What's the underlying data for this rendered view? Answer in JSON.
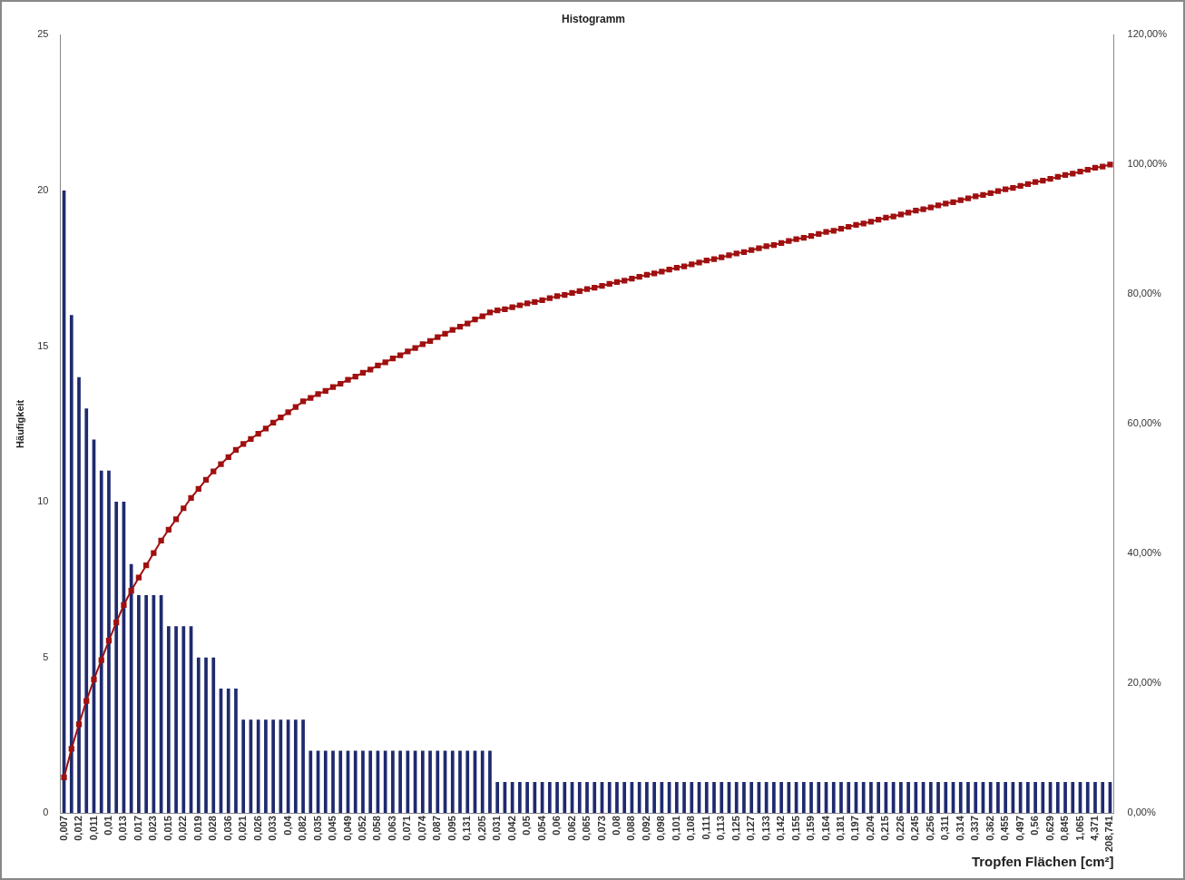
{
  "chart_data": {
    "type": "bar",
    "title": "Histogramm",
    "xlabel": "Tropfen Flächen [cm²]",
    "ylabel": "Häufigkeit",
    "categories": [
      "0,007",
      null,
      "0,012",
      null,
      "0,011",
      null,
      "0,01",
      null,
      "0,013",
      null,
      "0,017",
      null,
      "0,023",
      null,
      "0,015",
      null,
      "0,022",
      null,
      "0,019",
      null,
      "0,028",
      null,
      "0,036",
      null,
      "0,021",
      null,
      "0,026",
      null,
      "0,033",
      null,
      "0,04",
      null,
      "0,082",
      null,
      "0,035",
      null,
      "0,045",
      null,
      "0,049",
      null,
      "0,052",
      null,
      "0,058",
      null,
      "0,063",
      null,
      "0,071",
      null,
      "0,074",
      null,
      "0,087",
      null,
      "0,095",
      null,
      "0,131",
      null,
      "0,205",
      null,
      "0,031",
      null,
      "0,042",
      null,
      "0,05",
      null,
      "0,054",
      null,
      "0,06",
      null,
      "0,062",
      null,
      "0,065",
      null,
      "0,073",
      null,
      "0,08",
      null,
      "0,088",
      null,
      "0,092",
      null,
      "0,098",
      null,
      "0,101",
      null,
      "0,108",
      null,
      "0,111",
      null,
      "0,113",
      null,
      "0,125",
      null,
      "0,127",
      null,
      "0,133",
      null,
      "0,142",
      null,
      "0,155",
      null,
      "0,159",
      null,
      "0,164",
      null,
      "0,181",
      null,
      "0,197",
      null,
      "0,204",
      null,
      "0,215",
      null,
      "0,226",
      null,
      "0,245",
      null,
      "0,256",
      null,
      "0,311",
      null,
      "0,314",
      null,
      "0,337",
      null,
      "0,362",
      null,
      "0,455",
      null,
      "0,497",
      null,
      "0,56",
      null,
      "0,629",
      null,
      "0,845",
      null,
      "1,065",
      null,
      "4,371",
      null,
      "208,741"
    ],
    "series": [
      {
        "color": "#1f2a6e",
        "values": [
          20,
          16,
          14,
          13,
          12,
          11,
          11,
          10,
          10,
          8,
          7,
          7,
          7,
          7,
          6,
          6,
          6,
          6,
          5,
          5,
          5,
          4,
          4,
          4,
          3,
          3,
          3,
          3,
          3,
          3,
          3,
          3,
          3,
          2,
          2,
          2,
          2,
          2,
          2,
          2,
          2,
          2,
          2,
          2,
          2,
          2,
          2,
          2,
          2,
          2,
          2,
          2,
          2,
          2,
          2,
          2,
          2,
          2,
          1,
          1,
          1,
          1,
          1,
          1,
          1,
          1,
          1,
          1,
          1,
          1,
          1,
          1,
          1,
          1,
          1,
          1,
          1,
          1,
          1,
          1,
          1,
          1,
          1,
          1,
          1,
          1,
          1,
          1,
          1,
          1,
          1,
          1,
          1,
          1,
          1,
          1,
          1,
          1,
          1,
          1,
          1,
          1,
          1,
          1,
          1,
          1,
          1,
          1,
          1,
          1,
          1,
          1,
          1,
          1,
          1,
          1,
          1,
          1,
          1,
          1,
          1,
          1,
          1,
          1,
          1,
          1,
          1,
          1,
          1,
          1,
          1,
          1,
          1,
          1,
          1,
          1,
          1,
          1,
          1,
          1,
          1
        ]
      },
      {
        "type": "line",
        "axis": "y2",
        "color": "#a01010",
        "marker": "square",
        "values": [
          5.5,
          9.9,
          13.7,
          17.3,
          20.6,
          23.6,
          26.6,
          29.4,
          32.1,
          34.3,
          36.3,
          38.2,
          40.1,
          42.0,
          43.7,
          45.3,
          47.0,
          48.6,
          50.0,
          51.4,
          52.7,
          53.8,
          54.9,
          56.0,
          56.9,
          57.7,
          58.5,
          59.3,
          60.2,
          61.0,
          61.8,
          62.6,
          63.5,
          64.0,
          64.6,
          65.1,
          65.7,
          66.2,
          66.8,
          67.3,
          67.9,
          68.4,
          69.0,
          69.5,
          70.1,
          70.6,
          71.2,
          71.7,
          72.3,
          72.8,
          73.4,
          73.9,
          74.5,
          75.0,
          75.5,
          76.1,
          76.6,
          77.2,
          77.5,
          77.7,
          78.0,
          78.3,
          78.6,
          78.8,
          79.1,
          79.4,
          79.7,
          79.9,
          80.2,
          80.5,
          80.8,
          81.0,
          81.3,
          81.6,
          81.9,
          82.1,
          82.4,
          82.7,
          83.0,
          83.2,
          83.5,
          83.8,
          84.1,
          84.3,
          84.6,
          84.9,
          85.2,
          85.4,
          85.7,
          86.0,
          86.3,
          86.5,
          86.8,
          87.1,
          87.4,
          87.6,
          87.9,
          88.2,
          88.5,
          88.7,
          89.0,
          89.3,
          89.6,
          89.8,
          90.1,
          90.4,
          90.7,
          90.9,
          91.2,
          91.5,
          91.8,
          92.0,
          92.3,
          92.6,
          92.9,
          93.1,
          93.4,
          93.7,
          94.0,
          94.2,
          94.5,
          94.8,
          95.1,
          95.3,
          95.6,
          95.9,
          96.2,
          96.4,
          96.7,
          97.0,
          97.3,
          97.5,
          97.8,
          98.1,
          98.4,
          98.6,
          98.9,
          99.2,
          99.5,
          99.7,
          100
        ]
      }
    ],
    "ylim": [
      0,
      25
    ],
    "yticks": [
      0,
      5,
      10,
      15,
      20,
      25
    ],
    "y2lim": [
      0,
      120
    ],
    "y2ticks": [
      {
        "value": 0,
        "label": "0,00%"
      },
      {
        "value": 20,
        "label": "20,00%"
      },
      {
        "value": 40,
        "label": "40,00%"
      },
      {
        "value": 60,
        "label": "60,00%"
      },
      {
        "value": 80,
        "label": "80,00%"
      },
      {
        "value": 100,
        "label": "100,00%"
      },
      {
        "value": 120,
        "label": "120,00%"
      }
    ],
    "grid": false,
    "legend": false
  }
}
